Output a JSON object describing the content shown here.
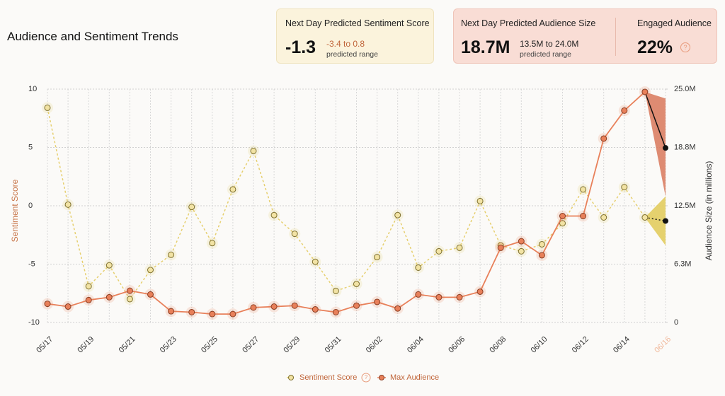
{
  "header": {
    "title": "Audience and Sentiment Trends"
  },
  "cards": [
    {
      "title": "Next Day Predicted Sentiment Score",
      "value": "-1.3",
      "range": "-3.4 to 0.8",
      "range_label": "predicted range"
    },
    {
      "title": "Next Day Predicted Audience Size",
      "value": "18.7M",
      "range": "13.5M to 24.0M",
      "range_label": "predicted range"
    },
    {
      "title": "Engaged Audience",
      "value": "22%",
      "help": "?"
    }
  ],
  "chart_data": {
    "type": "line",
    "ylabel": "Sentiment Score",
    "y2label": "Audience Size (in millions)",
    "categories": [
      "05/17",
      null,
      "05/19",
      null,
      "05/21",
      null,
      "05/23",
      null,
      "05/25",
      null,
      "05/27",
      null,
      "05/29",
      null,
      "05/31",
      null,
      "06/02",
      null,
      "06/04",
      null,
      "06/06",
      null,
      "06/08",
      null,
      "06/10",
      null,
      "06/12",
      null,
      "06/14",
      null,
      "06/16"
    ],
    "ylim": [
      -10,
      10
    ],
    "yticks": [
      -10,
      -5,
      0,
      5,
      10
    ],
    "y2lim": [
      0,
      25
    ],
    "y2ticks": [
      {
        "value": 0,
        "label": "0"
      },
      {
        "value": 6.25,
        "label": "6.3M"
      },
      {
        "value": 12.5,
        "label": "12.5M"
      },
      {
        "value": 18.75,
        "label": "18.8M"
      },
      {
        "value": 25,
        "label": "25.0M"
      }
    ],
    "grid": true,
    "series": [
      {
        "name": "Sentiment Score",
        "color": "#e6cf6e",
        "help": "?",
        "values": [
          8.4,
          0.1,
          -6.9,
          -5.1,
          -8.0,
          -5.5,
          -4.2,
          -0.1,
          -3.2,
          1.4,
          4.7,
          -0.8,
          -2.4,
          -4.8,
          -7.3,
          -6.7,
          -4.4,
          -0.8,
          -5.3,
          -3.9,
          -3.6,
          0.4,
          -3.4,
          -3.9,
          -3.3,
          -1.5,
          1.4,
          -1.0,
          1.6,
          -1.0,
          -1.3
        ],
        "forecast_range": [
          -3.4,
          0.8
        ]
      },
      {
        "name": "Max Audience",
        "color": "#e8805a",
        "axis": "y2",
        "values": [
          2.0,
          1.7,
          2.4,
          2.7,
          3.4,
          3.0,
          1.2,
          1.1,
          0.9,
          0.9,
          1.6,
          1.7,
          1.8,
          1.4,
          1.1,
          1.8,
          2.2,
          1.5,
          3.0,
          2.7,
          2.7,
          3.3,
          8.0,
          8.7,
          7.2,
          11.4,
          11.4,
          19.7,
          22.7,
          24.7,
          18.7
        ],
        "forecast_range": [
          13.5,
          24.0
        ]
      }
    ]
  }
}
